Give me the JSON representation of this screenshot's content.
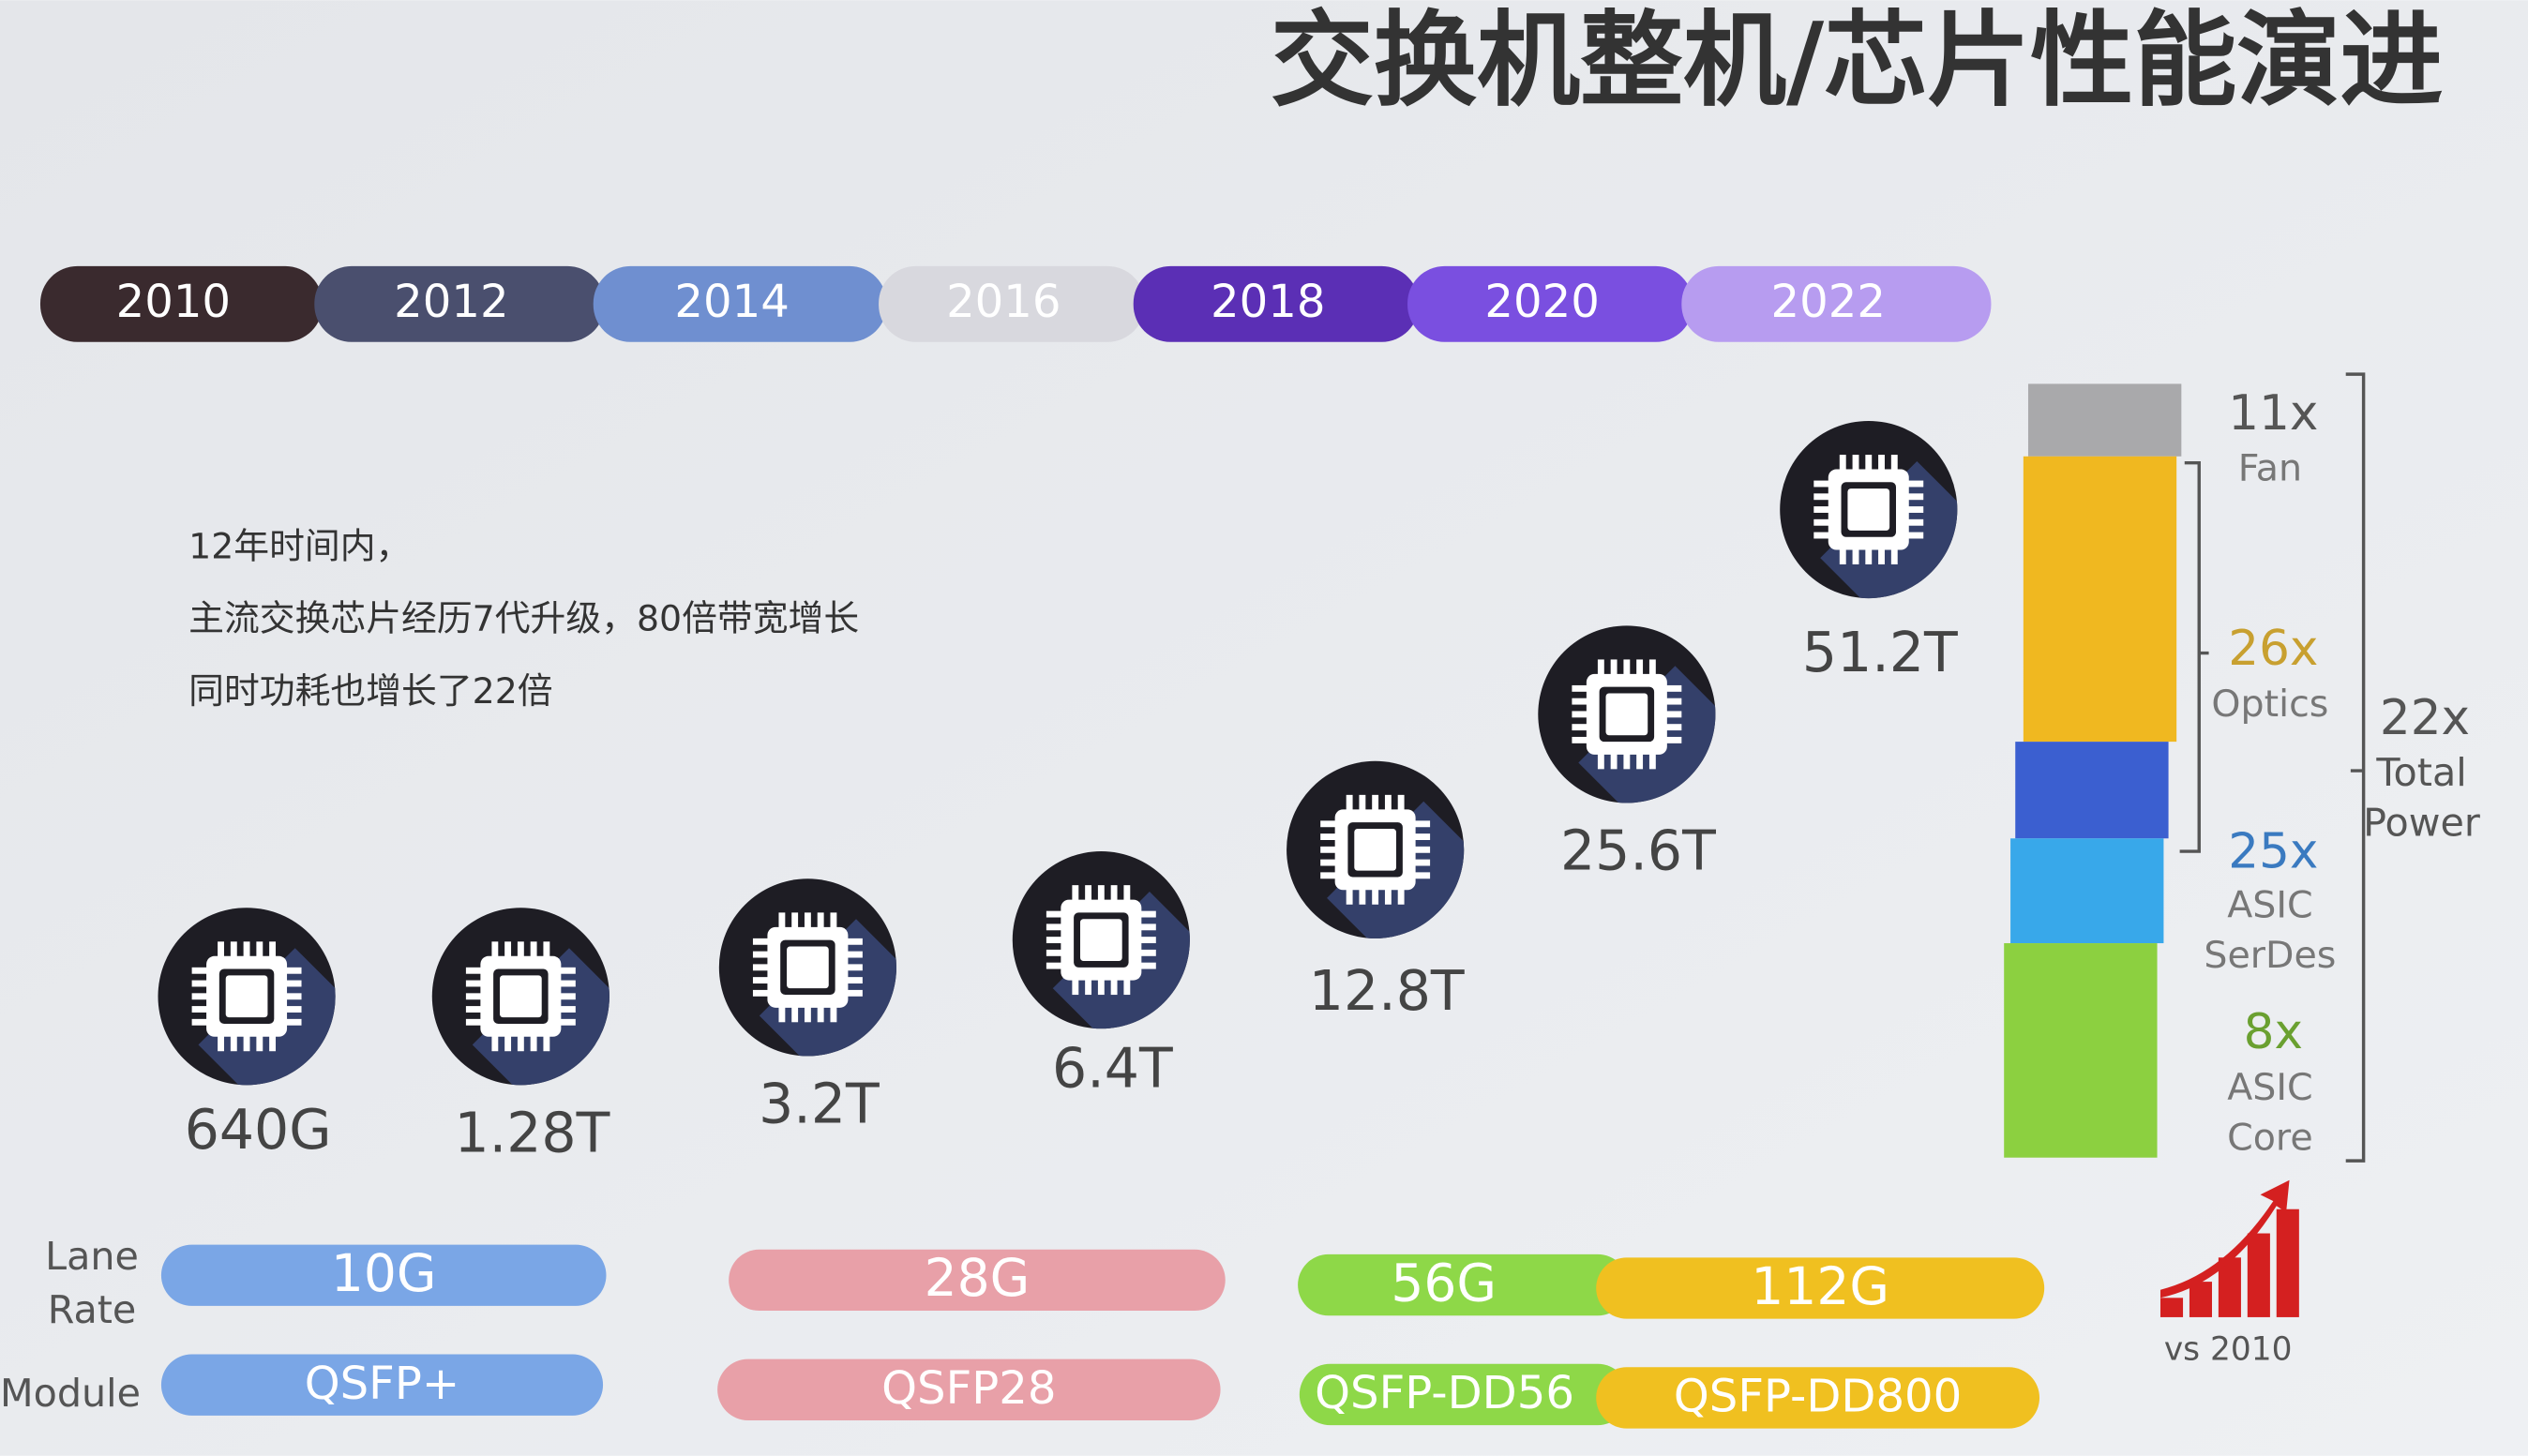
{
  "title": "交换机整机/芯片性能演进",
  "years": [
    "2010",
    "2012",
    "2014",
    "2016",
    "2018",
    "2020",
    "2022"
  ],
  "note": [
    "12年时间内，",
    "主流交换芯片经历7代升级，80倍带宽增长",
    "同时功耗也增长了22倍"
  ],
  "chips": [
    "640G",
    "1.28T",
    "3.2T",
    "6.4T",
    "12.8T",
    "25.6T",
    "51.2T"
  ],
  "power": {
    "segments": [
      {
        "multiplier": "11x",
        "name": [
          "Fan"
        ]
      },
      {
        "multiplier": "26x",
        "name": [
          "Optics"
        ]
      },
      {
        "multiplier": "25x",
        "name": [
          "ASIC",
          "SerDes"
        ]
      },
      {
        "multiplier": "8x",
        "name": [
          "ASIC",
          "Core"
        ]
      }
    ],
    "total": {
      "multiplier": "22x",
      "name": [
        "Total",
        "Power"
      ]
    },
    "caption": "vs 2010"
  },
  "lane_rate": {
    "label": [
      "Lane",
      "Rate"
    ],
    "items": [
      "10G",
      "28G",
      "56G",
      "112G"
    ]
  },
  "module": {
    "label": "Module",
    "items": [
      "QSFP+",
      "QSFP28",
      "QSFP-DD56",
      "QSFP-DD800"
    ]
  }
}
